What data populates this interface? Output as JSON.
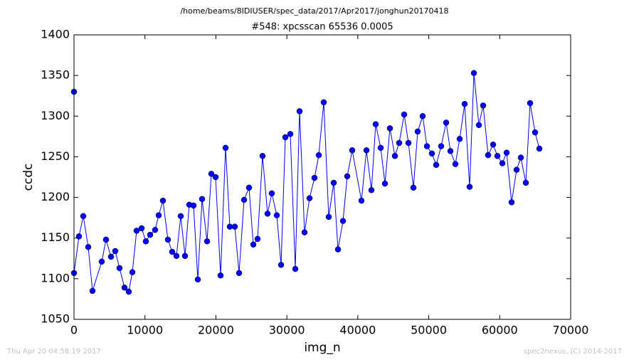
{
  "chart_data": {
    "type": "line",
    "suptitle": "/home/beams/8IDIUSER/spec_data/2017/Apr2017/jonghun20170418",
    "title": "#548: xpcsscan 65536 0.0005",
    "x_label": "img_n",
    "y_label": "ccdc",
    "timestamp": "Thu Apr 20 04:58:19 2017",
    "credit": "spec2nexus, (C) 2014-2017",
    "xlim": [
      0,
      70000
    ],
    "xticks": [
      0,
      10000,
      20000,
      30000,
      40000,
      50000,
      60000,
      70000
    ],
    "ylim": [
      1050,
      1400
    ],
    "yticks": [
      1050,
      1100,
      1150,
      1200,
      1250,
      1300,
      1350,
      1400
    ],
    "grid": false,
    "x": [
      0,
      0,
      702,
      1304,
      2006,
      2607,
      3911,
      4513,
      5215,
      5817,
      6419,
      7121,
      7722,
      8224,
      8825,
      9528,
      10129,
      10731,
      11433,
      11935,
      12536,
      13238,
      13840,
      14442,
      15044,
      15645,
      16247,
      16849,
      17450,
      18052,
      18754,
      19356,
      19958,
      20660,
      21362,
      21964,
      22666,
      23267,
      23969,
      24671,
      25273,
      25875,
      26577,
      27279,
      27881,
      28583,
      29184,
      29786,
      30488,
      31190,
      31792,
      32494,
      33196,
      33898,
      34500,
      35202,
      35904,
      36606,
      37208,
      37910,
      38511,
      39213,
      40517,
      41219,
      41921,
      42523,
      43225,
      43827,
      44529,
      45231,
      45833,
      46535,
      47136,
      47838,
      48440,
      49142,
      49744,
      50446,
      51048,
      51750,
      52452,
      53053,
      53755,
      54357,
      55059,
      55761,
      56363,
      57065,
      57667,
      58369,
      59071,
      59672,
      60374,
      60976,
      61678,
      62380,
      62982,
      63684,
      64286,
      64988,
      65590
    ],
    "series": [
      {
        "color": "#0000ff",
        "values": [
          1330,
          1107,
          1152,
          1177,
          1139,
          1085,
          1121,
          1148,
          1127,
          1134,
          1113,
          1089,
          1084,
          1108,
          1159,
          1162,
          1146,
          1154,
          1160,
          1178,
          1196,
          1148,
          1133,
          1128,
          1177,
          1128,
          1191,
          1190,
          1099,
          1198,
          1146,
          1229,
          1225,
          1104,
          1261,
          1164,
          1164,
          1107,
          1197,
          1212,
          1142,
          1149,
          1251,
          1180,
          1205,
          1178,
          1117,
          1274,
          1278,
          1112,
          1306,
          1157,
          1199,
          1224,
          1252,
          1317,
          1176,
          1218,
          1136,
          1171,
          1226,
          1258,
          1196,
          1258,
          1209,
          1290,
          1261,
          1217,
          1285,
          1251,
          1267,
          1302,
          1267,
          1212,
          1281,
          1300,
          1263,
          1254,
          1240,
          1263,
          1292,
          1257,
          1241,
          1272,
          1315,
          1213,
          1353,
          1289,
          1313,
          1252,
          1265,
          1251,
          1242,
          1255,
          1194,
          1234,
          1249,
          1218,
          1316,
          1280,
          1260
        ]
      }
    ]
  }
}
